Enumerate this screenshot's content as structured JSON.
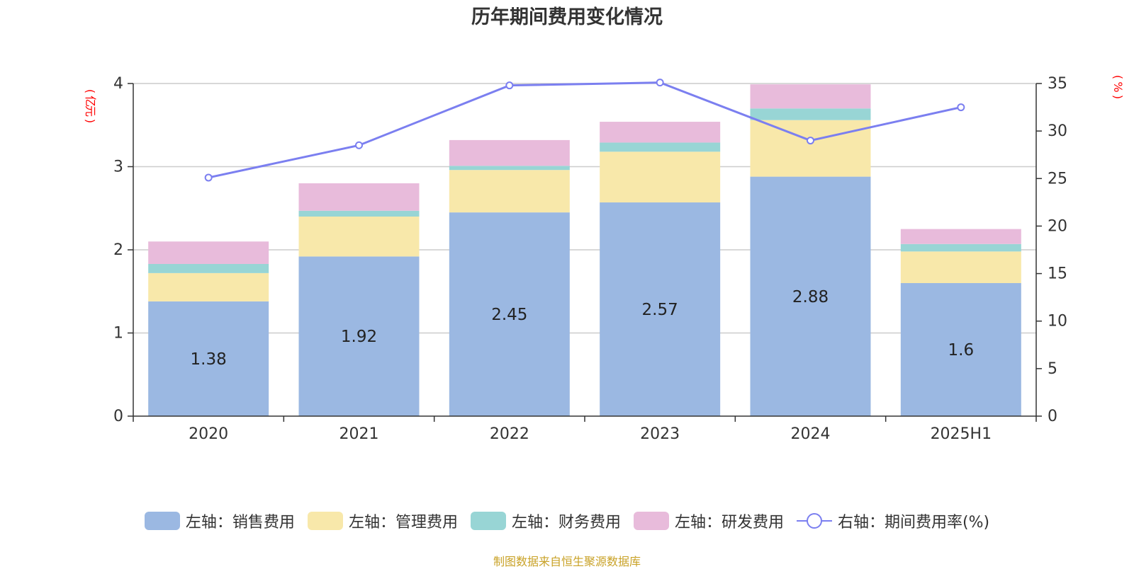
{
  "title": "历年期间费用变化情况",
  "units": {
    "left": "(亿元)",
    "right": "(%)"
  },
  "source": "制图数据来自恒生聚源数据库",
  "colors": {
    "sales": "#9bb8e2",
    "admin": "#f8e8aa",
    "finance": "#98d5d5",
    "rd": "#e8bbdb",
    "rate": "#7b7ff0",
    "unit_label": "#ff0000",
    "source": "#c9a227"
  },
  "chart_data": {
    "type": "bar",
    "stacked": true,
    "title": "历年期间费用变化情况",
    "categories": [
      "2020",
      "2021",
      "2022",
      "2023",
      "2024",
      "2025H1"
    ],
    "y_left": {
      "label": "(亿元)",
      "lim": [
        0,
        4
      ],
      "ticks": [
        0,
        1,
        2,
        3,
        4
      ]
    },
    "y_right": {
      "label": "(%)",
      "lim": [
        0,
        35
      ],
      "ticks": [
        0,
        5,
        10,
        15,
        20,
        25,
        30,
        35
      ]
    },
    "grid": true,
    "legend_position": "bottom",
    "series": [
      {
        "name": "左轴：销售费用",
        "type": "bar",
        "axis": "left",
        "values": [
          1.38,
          1.92,
          2.45,
          2.57,
          2.88,
          1.6
        ],
        "labels": [
          "1.38",
          "1.92",
          "2.45",
          "2.57",
          "2.88",
          "1.6"
        ]
      },
      {
        "name": "左轴：管理费用",
        "type": "bar",
        "axis": "left",
        "values": [
          0.34,
          0.48,
          0.51,
          0.61,
          0.68,
          0.38
        ]
      },
      {
        "name": "左轴：财务费用",
        "type": "bar",
        "axis": "left",
        "values": [
          0.11,
          0.07,
          0.05,
          0.11,
          0.14,
          0.09
        ]
      },
      {
        "name": "左轴：研发费用",
        "type": "bar",
        "axis": "left",
        "values": [
          0.27,
          0.33,
          0.31,
          0.25,
          0.29,
          0.18
        ]
      },
      {
        "name": "右轴：期间费用率(%)",
        "type": "line",
        "axis": "right",
        "values": [
          25.1,
          28.5,
          34.8,
          35.1,
          29.0,
          32.5
        ]
      }
    ]
  }
}
